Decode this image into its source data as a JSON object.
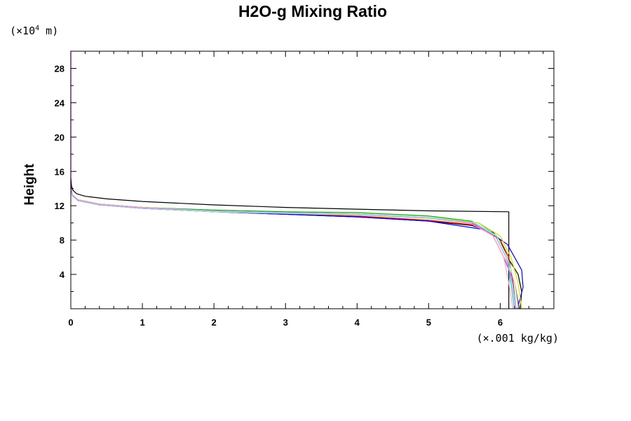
{
  "chart_data": {
    "type": "line",
    "title": "H2O-g Mixing Ratio",
    "ylabel": "Height",
    "xlabel": "",
    "y_unit": {
      "prefix": "(×10",
      "exponent": "4",
      "suffix": " m)"
    },
    "x_unit": "(×.001 kg/kg)",
    "xlim": [
      0,
      6.75
    ],
    "ylim": [
      0,
      30
    ],
    "x_ticks": [
      0,
      1,
      2,
      3,
      4,
      5,
      6
    ],
    "x_tick_labels": [
      "0",
      "1",
      "2",
      "3",
      "4",
      "5",
      "6"
    ],
    "y_ticks": [
      4,
      8,
      12,
      16,
      20,
      24,
      28
    ],
    "y_tick_labels": [
      "4",
      "8",
      "12",
      "16",
      "20",
      "24",
      "28"
    ],
    "x_minor_step": 0.2,
    "y_minor_step": 2,
    "grid": false,
    "legend": "none",
    "series": [
      {
        "color": "#000000",
        "x": [
          6.12,
          6.12,
          6.12,
          5.0,
          4.0,
          3.0,
          2.0,
          1.0,
          0.5,
          0.2,
          0.08,
          0.03,
          0.01,
          0.0
        ],
        "y": [
          0.0,
          5.0,
          11.3,
          11.4,
          11.6,
          11.8,
          12.1,
          12.5,
          12.8,
          13.1,
          13.4,
          13.8,
          14.3,
          15.2
        ]
      },
      {
        "color": "#000000",
        "x": [
          6.28,
          6.3,
          6.25,
          6.1,
          6.05,
          6.0,
          5.9,
          5.6,
          5.0,
          4.0,
          3.0,
          2.0,
          1.0,
          0.4,
          0.1,
          0.02,
          0.0
        ],
        "y": [
          0.0,
          2.0,
          4.0,
          6.0,
          7.0,
          8.0,
          8.9,
          9.7,
          10.2,
          10.7,
          11.0,
          11.3,
          11.7,
          12.1,
          12.6,
          13.3,
          14.2
        ]
      },
      {
        "color": "#ff0000",
        "x": [
          6.22,
          6.18,
          6.12,
          6.0,
          5.7,
          5.0,
          4.0,
          3.0,
          2.0,
          1.0,
          0.4,
          0.1,
          0.02,
          0.0
        ],
        "y": [
          0.0,
          3.0,
          6.0,
          8.0,
          9.7,
          10.3,
          10.8,
          11.1,
          11.4,
          11.8,
          12.2,
          12.7,
          13.3,
          14.1
        ]
      },
      {
        "color": "#00aa00",
        "x": [
          6.27,
          6.2,
          6.1,
          5.95,
          5.6,
          5.0,
          4.0,
          3.0,
          2.0,
          1.0,
          0.4,
          0.1,
          0.02,
          0.0
        ],
        "y": [
          0.0,
          3.0,
          6.0,
          8.5,
          10.2,
          10.8,
          11.2,
          11.3,
          11.5,
          11.8,
          12.2,
          12.7,
          13.3,
          14.0
        ]
      },
      {
        "color": "#0000ff",
        "x": [
          6.24,
          6.32,
          6.3,
          6.2,
          6.1,
          5.8,
          5.0,
          4.0,
          3.0,
          2.0,
          1.0,
          0.4,
          0.1,
          0.02,
          0.0
        ],
        "y": [
          0.0,
          2.5,
          4.5,
          6.0,
          7.5,
          9.2,
          10.2,
          10.7,
          11.0,
          11.3,
          11.7,
          12.1,
          12.6,
          13.2,
          14.0
        ]
      },
      {
        "color": "#00cccc",
        "x": [
          6.2,
          6.15,
          6.1,
          5.95,
          5.7,
          5.0,
          4.0,
          3.0,
          2.0,
          1.0,
          0.4,
          0.1,
          0.02,
          0.0
        ],
        "y": [
          0.0,
          3.0,
          6.0,
          8.5,
          10.0,
          10.6,
          11.0,
          11.2,
          11.4,
          11.8,
          12.2,
          12.6,
          13.2,
          13.8
        ]
      },
      {
        "color": "#ff00ff",
        "x": [
          6.26,
          6.2,
          6.05,
          5.9,
          5.6,
          5.0,
          4.0,
          3.0,
          2.0,
          1.0,
          0.4,
          0.1,
          0.02,
          0.0,
          0.0
        ],
        "y": [
          0.0,
          3.0,
          6.0,
          8.5,
          10.0,
          10.6,
          11.0,
          11.2,
          11.4,
          11.7,
          12.1,
          12.6,
          13.2,
          14.0,
          30.0
        ]
      },
      {
        "color": "#dddd00",
        "x": [
          6.3,
          6.25,
          6.15,
          6.0,
          5.7,
          5.0,
          4.0,
          3.0,
          2.0,
          1.0,
          0.4,
          0.1,
          0.02,
          0.0
        ],
        "y": [
          0.0,
          3.0,
          6.0,
          8.5,
          10.0,
          10.6,
          11.0,
          11.2,
          11.4,
          11.7,
          12.1,
          12.6,
          13.2,
          13.9
        ]
      },
      {
        "color": "#ffaaaa",
        "x": [
          6.18,
          6.12,
          6.05,
          5.9,
          5.6,
          5.0,
          4.0,
          3.0,
          2.0,
          1.0,
          0.4,
          0.1,
          0.02,
          0.0
        ],
        "y": [
          0.0,
          3.0,
          6.0,
          8.5,
          9.9,
          10.5,
          10.9,
          11.2,
          11.4,
          11.8,
          12.2,
          12.7,
          13.3,
          14.0
        ]
      },
      {
        "color": "#aaffaa",
        "x": [
          6.25,
          6.2,
          6.1,
          5.95,
          5.65,
          5.0,
          4.0,
          3.0,
          2.0,
          1.0,
          0.4,
          0.1,
          0.02,
          0.0
        ],
        "y": [
          0.0,
          3.0,
          6.0,
          8.5,
          10.0,
          10.5,
          10.9,
          11.1,
          11.3,
          11.7,
          12.1,
          12.6,
          13.2,
          13.9
        ]
      },
      {
        "color": "#aaaaff",
        "x": [
          6.22,
          6.17,
          6.08,
          5.93,
          5.62,
          5.0,
          4.0,
          3.0,
          2.0,
          1.0,
          0.4,
          0.1,
          0.02,
          0.0
        ],
        "y": [
          0.0,
          3.0,
          6.0,
          8.5,
          10.0,
          10.6,
          11.0,
          11.2,
          11.4,
          11.7,
          12.1,
          12.6,
          13.2,
          13.9
        ]
      }
    ]
  }
}
